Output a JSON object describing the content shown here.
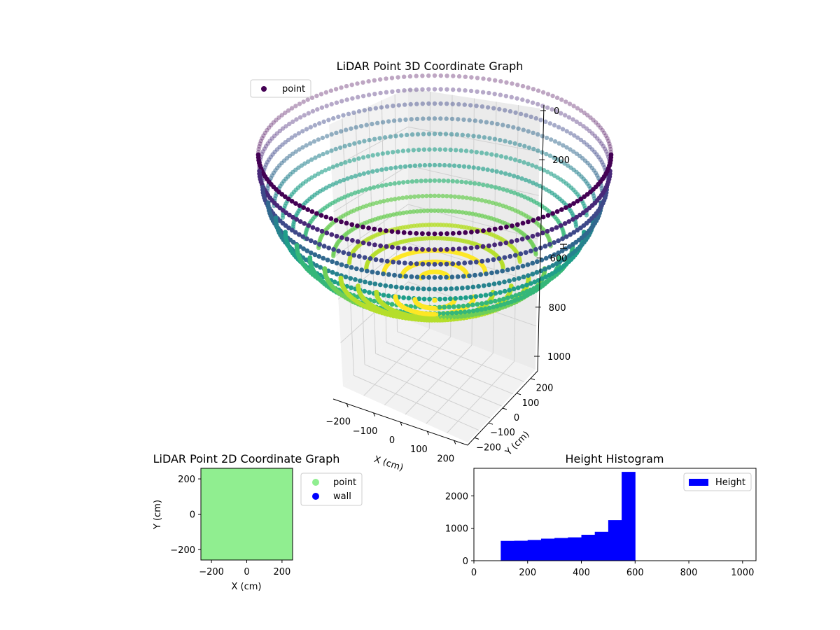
{
  "figure_background": "#ffffff",
  "chart_data": [
    {
      "type": "scatter",
      "projection": "3d",
      "title": "LiDAR Point 3D Coordinate Graph",
      "xlabel": "X (cm)",
      "ylabel": "Y (cm)",
      "zlabel": "H",
      "x_ticks": [
        -200,
        -100,
        0,
        100,
        200
      ],
      "y_ticks": [
        -200,
        -100,
        0,
        100,
        200
      ],
      "z_ticks": [
        0,
        200,
        600,
        800,
        1000
      ],
      "x_tick_labels": [
        "−200",
        "−100",
        "0",
        "100",
        "200"
      ],
      "y_tick_labels": [
        "−200",
        "−100",
        "0",
        "100",
        "200"
      ],
      "z_tick_labels": [
        "0",
        "200",
        "600",
        "800",
        "1000"
      ],
      "xlim": [
        -250,
        250
      ],
      "ylim": [
        -250,
        250
      ],
      "zlim": [
        0,
        1000
      ],
      "z_inverted": true,
      "grid": true,
      "colormap": "viridis",
      "legend": {
        "placement": "top-left",
        "entries": [
          {
            "label": "point",
            "color": "#440154"
          }
        ]
      },
      "series": [
        {
          "name": "point",
          "shape": "hemispherical bowl",
          "radius_cm": 250,
          "depth_range_cm": [
            100,
            600
          ]
        }
      ]
    },
    {
      "type": "scatter",
      "title": "LiDAR Point 2D Coordinate Graph",
      "xlabel": "X (cm)",
      "ylabel": "Y (cm)",
      "xlim": [
        -260,
        260
      ],
      "ylim": [
        -260,
        260
      ],
      "x_ticks": [
        -200,
        0,
        200
      ],
      "y_ticks": [
        -200,
        0,
        200
      ],
      "x_tick_labels": [
        "−200",
        "0",
        "200"
      ],
      "y_tick_labels": [
        "−200",
        "0",
        "200"
      ],
      "legend": {
        "placement": "outside-right",
        "entries": [
          {
            "label": "point",
            "color": "#90ee90"
          },
          {
            "label": "wall",
            "color": "#0000ff"
          }
        ]
      },
      "series": [
        {
          "name": "point",
          "color": "#90ee90",
          "fill_extent": [
            -260,
            260,
            -260,
            260
          ]
        },
        {
          "name": "wall",
          "color": "#0000ff",
          "points": []
        }
      ]
    },
    {
      "type": "bar",
      "title": "Height Histogram",
      "xlim": [
        0,
        1050
      ],
      "ylim": [
        0,
        2850
      ],
      "x_ticks": [
        0,
        200,
        400,
        600,
        800,
        1000
      ],
      "y_ticks": [
        0,
        1000,
        2000
      ],
      "x_tick_labels": [
        "0",
        "200",
        "400",
        "600",
        "800",
        "1000"
      ],
      "y_tick_labels": [
        "0",
        "1000",
        "2000"
      ],
      "legend": {
        "placement": "top-right",
        "entries": [
          {
            "label": "Height",
            "color": "#0000ff"
          }
        ]
      },
      "series": [
        {
          "name": "Height",
          "color": "#0000ff",
          "bins": [
            {
              "start": 100,
              "end": 150,
              "count": 610
            },
            {
              "start": 150,
              "end": 200,
              "count": 615
            },
            {
              "start": 200,
              "end": 250,
              "count": 640
            },
            {
              "start": 250,
              "end": 300,
              "count": 680
            },
            {
              "start": 300,
              "end": 350,
              "count": 700
            },
            {
              "start": 350,
              "end": 400,
              "count": 720
            },
            {
              "start": 400,
              "end": 450,
              "count": 800
            },
            {
              "start": 450,
              "end": 500,
              "count": 890
            },
            {
              "start": 500,
              "end": 550,
              "count": 1250
            },
            {
              "start": 550,
              "end": 600,
              "count": 2740
            }
          ]
        }
      ]
    }
  ]
}
